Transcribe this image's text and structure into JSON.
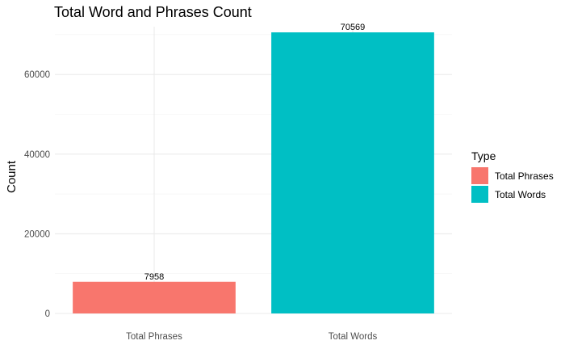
{
  "chart_data": {
    "type": "bar",
    "title": "Total Word and Phrases Count",
    "xlabel": "",
    "ylabel": "Count",
    "categories": [
      "Total Phrases",
      "Total Words"
    ],
    "values": [
      7958,
      70569
    ],
    "data_labels": [
      "7958",
      "70569"
    ],
    "colors": [
      "#F8766D",
      "#00BFC4"
    ],
    "ylim": [
      0,
      72000
    ],
    "yticks": [
      0,
      20000,
      40000,
      60000
    ],
    "ytick_labels": [
      "0",
      "20000",
      "40000",
      "60000"
    ],
    "grid": true,
    "legend": {
      "title": "Type",
      "position": "right",
      "entries": [
        "Total Phrases",
        "Total Words"
      ]
    }
  }
}
